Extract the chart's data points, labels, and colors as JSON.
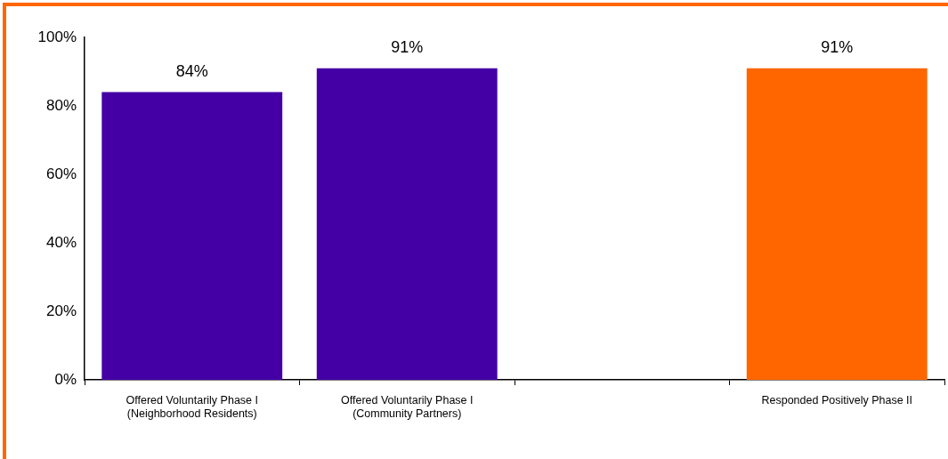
{
  "chart_data": {
    "type": "bar",
    "categories": [
      "Offered Voluntarily Phase I (Neighborhood Residents)",
      "Offered Voluntarily Phase I (Community Partners)",
      null,
      "Responded Positively Phase II"
    ],
    "values": [
      84,
      91,
      null,
      91
    ],
    "colors": [
      "#4400a4",
      "#4400a4",
      "#4400a4",
      "#ff6600"
    ],
    "value_labels": [
      "84%",
      "91%",
      null,
      "91%"
    ],
    "ylim": [
      0,
      100
    ],
    "yticks": [
      {
        "value": 0,
        "label": "0%"
      },
      {
        "value": 20,
        "label": "20%"
      },
      {
        "value": 40,
        "label": "40%"
      },
      {
        "value": 60,
        "label": "60%"
      },
      {
        "value": 80,
        "label": "80%"
      },
      {
        "value": 100,
        "label": "100%"
      }
    ],
    "grid": false,
    "legend": false
  }
}
